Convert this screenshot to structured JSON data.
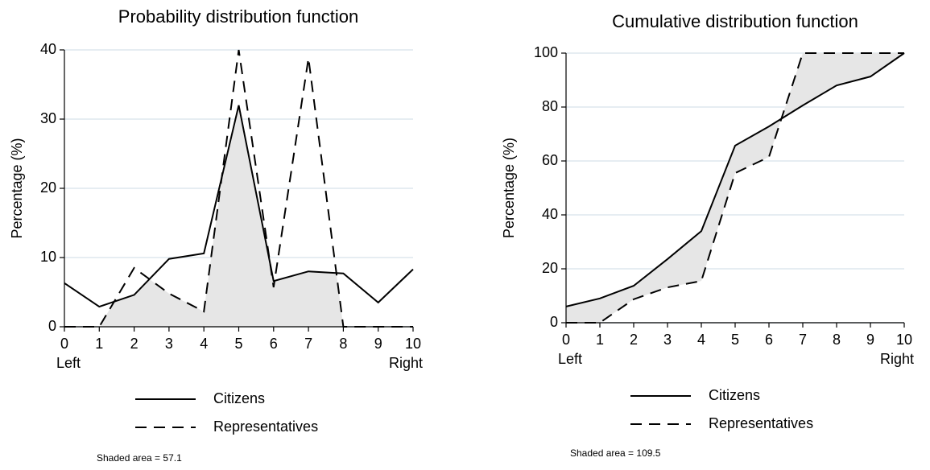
{
  "chart_data": [
    {
      "type": "line",
      "title": "Probability distribution function",
      "ylabel": "Percentage (%)",
      "x": [
        0,
        1,
        2,
        3,
        4,
        5,
        6,
        7,
        8,
        9,
        10
      ],
      "xticks": [
        0,
        1,
        2,
        3,
        4,
        5,
        6,
        7,
        8,
        9,
        10
      ],
      "xlim": [
        0,
        10
      ],
      "x_end_labels": [
        "Left",
        "Right"
      ],
      "ylim": [
        0,
        40
      ],
      "yticks": [
        0,
        10,
        20,
        30,
        40
      ],
      "grid": true,
      "series": [
        {
          "name": "Citizens",
          "color": "#000000",
          "style": "solid",
          "values": [
            6.3,
            2.9,
            4.6,
            9.8,
            10.6,
            32,
            6.6,
            8.0,
            7.7,
            3.5,
            8.3
          ]
        },
        {
          "name": "Representatives",
          "color": "#000000",
          "style": "dashed",
          "values": [
            0,
            0,
            8.5,
            4.8,
            2.2,
            40,
            5.7,
            38.8,
            0,
            0,
            0
          ]
        }
      ],
      "annotation": "Shaded area = 57.1"
    },
    {
      "type": "line",
      "title": "Cumulative distribution function",
      "ylabel": "Percentage (%)",
      "x": [
        0,
        1,
        2,
        3,
        4,
        5,
        6,
        7,
        8,
        9,
        10
      ],
      "xticks": [
        0,
        1,
        2,
        3,
        4,
        5,
        6,
        7,
        8,
        9,
        10
      ],
      "xlim": [
        0,
        10
      ],
      "x_end_labels": [
        "Left",
        "Right"
      ],
      "ylim": [
        0,
        100
      ],
      "yticks": [
        0,
        20,
        40,
        60,
        80,
        100
      ],
      "grid": true,
      "series": [
        {
          "name": "Citizens",
          "color": "#000000",
          "style": "solid",
          "values": [
            6.0,
            9.0,
            13.7,
            23.6,
            34.0,
            65.7,
            72.8,
            80.6,
            88.0,
            91.3,
            100
          ]
        },
        {
          "name": "Representatives",
          "color": "#000000",
          "style": "dashed",
          "values": [
            0,
            0,
            8.7,
            13.1,
            15.5,
            55.5,
            61.5,
            100,
            100,
            100,
            100
          ]
        }
      ],
      "annotation": "Shaded area = 109.5"
    }
  ]
}
